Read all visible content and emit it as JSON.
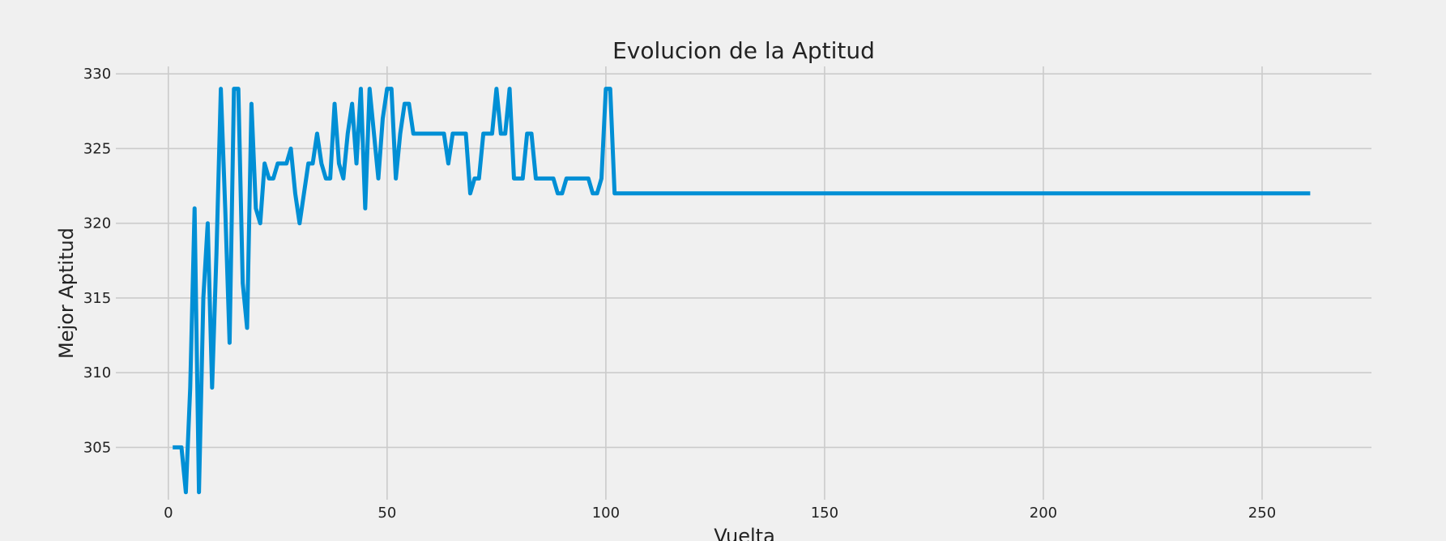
{
  "chart_data": {
    "type": "line",
    "title": "Evolucion de la Aptitud",
    "xlabel": "Vuelta",
    "ylabel": "Mejor Aptitud",
    "xlim": [
      -12,
      275
    ],
    "ylim": [
      301.5,
      330.5
    ],
    "xticks": [
      0,
      50,
      100,
      150,
      200,
      250
    ],
    "yticks": [
      305,
      310,
      315,
      320,
      325,
      330
    ],
    "grid": true,
    "line_color": "#008fd5",
    "background_color": "#f0f0f0",
    "grid_color": "#cbcbcb",
    "series": [
      {
        "x": [
          1,
          2,
          3,
          4,
          5,
          6,
          7,
          8,
          9,
          10,
          11,
          12,
          13,
          14,
          15,
          16,
          17,
          18,
          19,
          20,
          21,
          22,
          23,
          24,
          25,
          26,
          27,
          28,
          29,
          30,
          31,
          32,
          33,
          34,
          35,
          36,
          37,
          38,
          39,
          40,
          41,
          42,
          43,
          44,
          45,
          46,
          47,
          48,
          49,
          50,
          51,
          52,
          53,
          54,
          55,
          56,
          57,
          58,
          59,
          60,
          61,
          62,
          63,
          64,
          65,
          66,
          67,
          68,
          69,
          70,
          71,
          72,
          73,
          74,
          75,
          76,
          77,
          78,
          79,
          80,
          81,
          82,
          83,
          84,
          85,
          86,
          87,
          88,
          89,
          90,
          91,
          92,
          93,
          94,
          95,
          96,
          97,
          98,
          99,
          100,
          101,
          102,
          261
        ],
        "y": [
          305,
          305,
          305,
          302,
          309,
          321,
          302,
          315,
          320,
          309,
          318,
          329,
          321,
          312,
          329,
          329,
          316,
          313,
          328,
          321,
          320,
          324,
          323,
          323,
          324,
          324,
          324,
          325,
          322,
          320,
          322,
          324,
          324,
          326,
          324,
          323,
          323,
          328,
          324,
          323,
          326,
          328,
          324,
          329,
          321,
          329,
          326,
          323,
          327,
          329,
          329,
          323,
          326,
          328,
          328,
          326,
          326,
          326,
          326,
          326,
          326,
          326,
          326,
          324,
          326,
          326,
          326,
          326,
          322,
          323,
          323,
          326,
          326,
          326,
          329,
          326,
          326,
          329,
          323,
          323,
          323,
          326,
          326,
          323,
          323,
          323,
          323,
          323,
          322,
          322,
          323,
          323,
          323,
          323,
          323,
          323,
          322,
          322,
          323,
          329,
          329,
          322,
          322
        ]
      }
    ]
  }
}
